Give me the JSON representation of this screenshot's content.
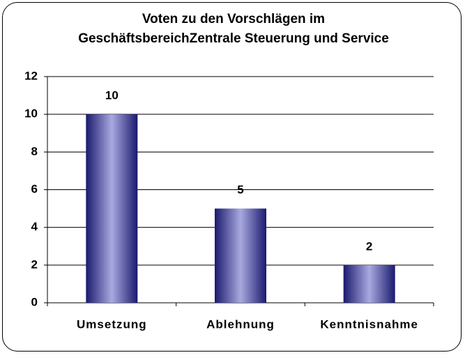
{
  "chart_data": {
    "type": "bar",
    "title": "Voten zu den Vorschlägen im GeschäftsbereichZentrale Steuerung und Service",
    "categories": [
      "Umsetzung",
      "Ablehnung",
      "Kenntnisnahme"
    ],
    "values": [
      10,
      5,
      2
    ],
    "color": "#a9a9e0",
    "ylim": [
      0,
      12
    ],
    "yticks": [
      0,
      2,
      4,
      6,
      8,
      10,
      12
    ],
    "grid": true
  }
}
